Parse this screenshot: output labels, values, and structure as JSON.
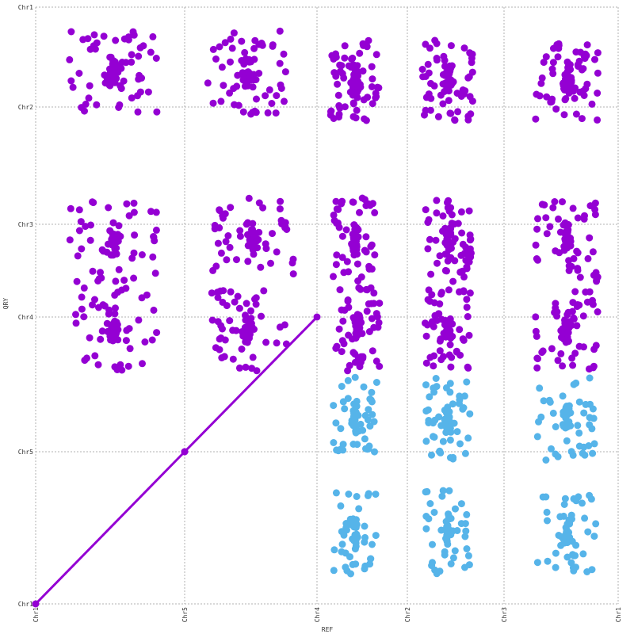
{
  "chart_data": {
    "type": "scatter",
    "title": "",
    "xlabel": "REF",
    "ylabel": "QRY",
    "x_ticks": [
      "Chr1",
      "Chr5",
      "Chr4",
      "Chr2",
      "Chr3",
      "Chr1"
    ],
    "y_ticks": [
      "Chr1",
      "Chr5",
      "Chr4",
      "Chr3",
      "Chr2",
      "Chr1"
    ],
    "grid": true,
    "legend": "none",
    "series_colors": {
      "forward": "#9400D3",
      "reverse": "#56B4E9"
    },
    "diagonal_segments": [
      {
        "from": [
          "Chr1",
          "Chr1"
        ],
        "to": [
          "Chr5",
          "Chr5"
        ],
        "color": "#9400D3"
      },
      {
        "from": [
          "Chr5",
          "Chr5"
        ],
        "to": [
          "Chr4",
          "Chr4"
        ],
        "color": "#9400D3"
      }
    ],
    "clusters": [
      {
        "x": 0.52,
        "y": 0.89,
        "spread": 0.28,
        "n": 90,
        "color": "#9400D3"
      },
      {
        "x": 1.48,
        "y": 0.89,
        "spread": 0.28,
        "n": 80,
        "color": "#9400D3"
      },
      {
        "x": 2.42,
        "y": 0.88,
        "spread": 0.25,
        "n": 90,
        "color": "#9400D3"
      },
      {
        "x": 3.42,
        "y": 0.88,
        "spread": 0.25,
        "n": 90,
        "color": "#9400D3"
      },
      {
        "x": 4.55,
        "y": 0.88,
        "spread": 0.25,
        "n": 90,
        "color": "#9400D3"
      },
      {
        "x": 0.52,
        "y": 0.61,
        "spread": 0.28,
        "n": 70,
        "color": "#9400D3"
      },
      {
        "x": 1.52,
        "y": 0.61,
        "spread": 0.28,
        "n": 70,
        "color": "#9400D3"
      },
      {
        "x": 2.42,
        "y": 0.61,
        "spread": 0.22,
        "n": 70,
        "color": "#9400D3"
      },
      {
        "x": 3.42,
        "y": 0.61,
        "spread": 0.22,
        "n": 80,
        "color": "#9400D3"
      },
      {
        "x": 4.55,
        "y": 0.61,
        "spread": 0.25,
        "n": 70,
        "color": "#9400D3"
      },
      {
        "x": 0.52,
        "y": 0.46,
        "spread": 0.28,
        "n": 70,
        "color": "#9400D3"
      },
      {
        "x": 1.48,
        "y": 0.46,
        "spread": 0.28,
        "n": 70,
        "color": "#9400D3"
      },
      {
        "x": 2.45,
        "y": 0.46,
        "spread": 0.22,
        "n": 80,
        "color": "#9400D3"
      },
      {
        "x": 3.42,
        "y": 0.46,
        "spread": 0.22,
        "n": 80,
        "color": "#9400D3"
      },
      {
        "x": 4.55,
        "y": 0.46,
        "spread": 0.25,
        "n": 70,
        "color": "#9400D3"
      },
      {
        "x": 2.42,
        "y": 0.31,
        "spread": 0.22,
        "n": 60,
        "color": "#56B4E9"
      },
      {
        "x": 3.42,
        "y": 0.31,
        "spread": 0.22,
        "n": 70,
        "color": "#56B4E9"
      },
      {
        "x": 4.55,
        "y": 0.31,
        "spread": 0.25,
        "n": 60,
        "color": "#56B4E9"
      },
      {
        "x": 2.42,
        "y": 0.12,
        "spread": 0.22,
        "n": 60,
        "color": "#56B4E9"
      },
      {
        "x": 3.42,
        "y": 0.12,
        "spread": 0.22,
        "n": 60,
        "color": "#56B4E9"
      },
      {
        "x": 4.55,
        "y": 0.12,
        "spread": 0.25,
        "n": 60,
        "color": "#56B4E9"
      }
    ]
  }
}
